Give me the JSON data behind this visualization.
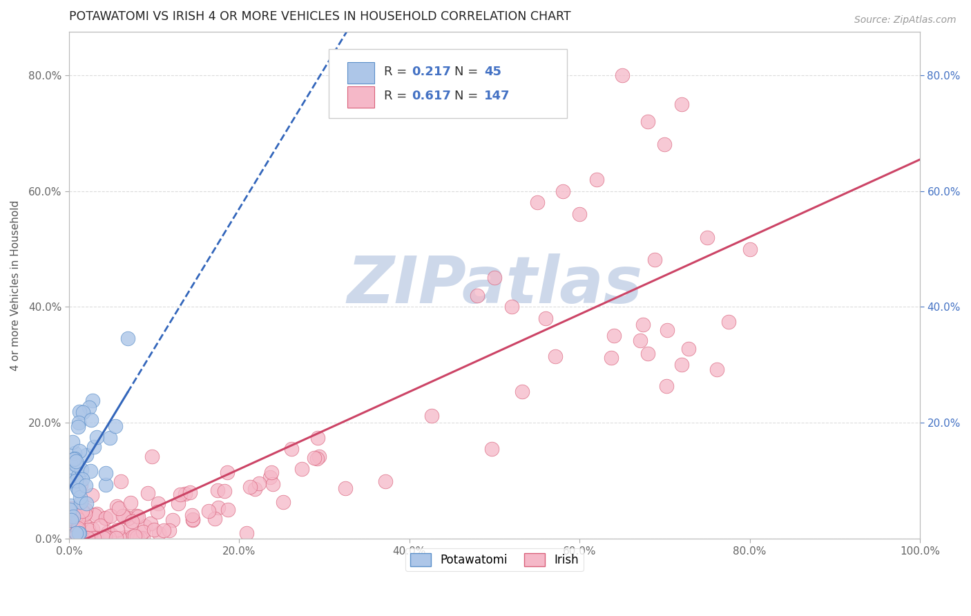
{
  "title": "POTAWATOMI VS IRISH 4 OR MORE VEHICLES IN HOUSEHOLD CORRELATION CHART",
  "source_text": "Source: ZipAtlas.com",
  "ylabel": "4 or more Vehicles in Household",
  "xlim": [
    0,
    1.0
  ],
  "ylim": [
    0,
    0.875
  ],
  "xticks": [
    0.0,
    0.2,
    0.4,
    0.6,
    0.8,
    1.0
  ],
  "xticklabels": [
    "0.0%",
    "20.0%",
    "40.0%",
    "60.0%",
    "80.0%",
    "100.0%"
  ],
  "yticks": [
    0.0,
    0.2,
    0.4,
    0.6,
    0.8
  ],
  "yticklabels": [
    "0.0%",
    "20.0%",
    "40.0%",
    "60.0%",
    "80.0%"
  ],
  "right_yticks": [
    0.2,
    0.4,
    0.6,
    0.8
  ],
  "right_yticklabels": [
    "20.0%",
    "40.0%",
    "60.0%",
    "80.0%"
  ],
  "potawatomi_R": 0.217,
  "potawatomi_N": 45,
  "irish_R": 0.617,
  "irish_N": 147,
  "blue_fill": "#adc6e8",
  "blue_edge": "#5b8fc9",
  "pink_fill": "#f5b8c8",
  "pink_edge": "#d9607a",
  "blue_line_color": "#3366bb",
  "pink_line_color": "#cc4466",
  "legend_label_1": "Potawatomi",
  "legend_label_2": "Irish",
  "watermark": "ZIPatlas",
  "watermark_color": "#cdd8ea",
  "background_color": "#ffffff",
  "grid_color": "#cccccc"
}
